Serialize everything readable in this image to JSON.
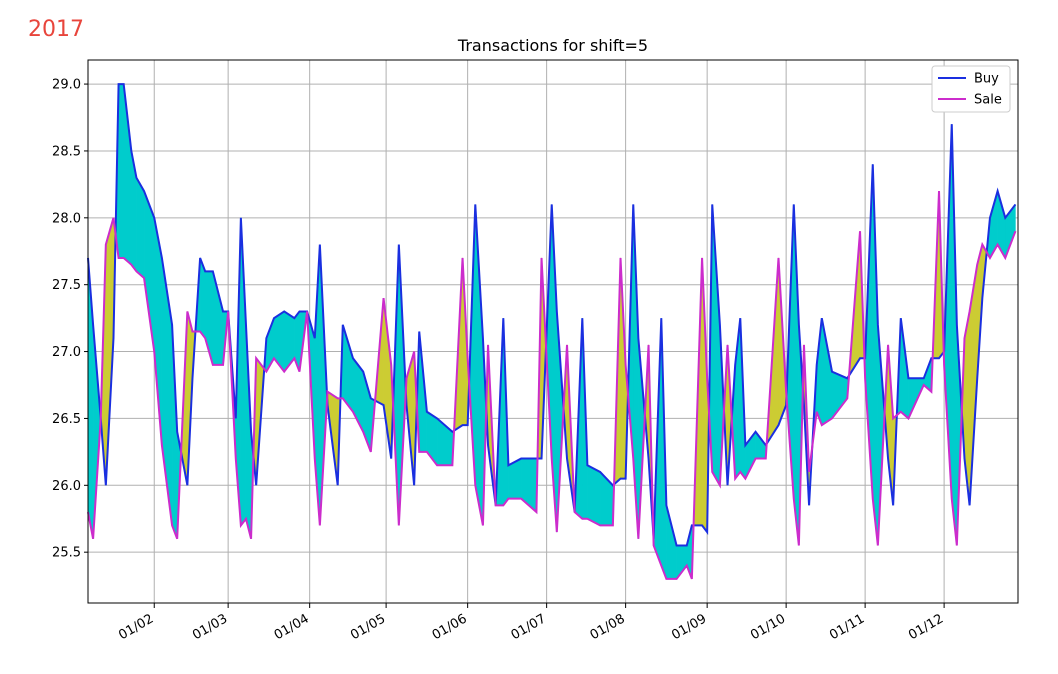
{
  "chart_data": {
    "type": "fill_between_line",
    "year_label": "2017",
    "title": "Transactions for shift=5",
    "x": [
      6,
      8,
      11,
      13,
      16,
      18,
      20,
      23,
      25,
      28,
      32,
      35,
      39,
      41,
      45,
      47,
      50,
      52,
      55,
      59,
      61,
      64,
      66,
      68,
      70,
      72,
      76,
      79,
      83,
      87,
      89,
      92,
      95,
      97,
      100,
      104,
      106,
      110,
      114,
      117,
      122,
      125,
      128,
      131,
      134,
      136,
      139,
      143,
      149,
      153,
      155,
      158,
      161,
      163,
      166,
      169,
      171,
      176,
      182,
      184,
      188,
      190,
      194,
      197,
      200,
      202,
      207,
      212,
      215,
      217,
      220,
      222,
      226,
      228,
      231,
      233,
      237,
      241,
      243,
      247,
      249,
      251,
      254,
      257,
      260,
      262,
      264,
      268,
      272,
      277,
      280,
      283,
      285,
      287,
      289,
      292,
      294,
      298,
      304,
      309,
      311,
      314,
      316,
      320,
      322,
      325,
      328,
      334,
      337,
      340,
      342,
      345,
      347,
      350,
      352,
      355,
      357,
      360,
      363,
      366,
      370
    ],
    "series": [
      {
        "name": "Buy",
        "color": "#1a2fe0",
        "values": [
          27.7,
          27.2,
          26.5,
          26.0,
          27.1,
          29.0,
          29.0,
          28.5,
          28.3,
          28.2,
          28.0,
          27.7,
          27.2,
          26.4,
          26.0,
          26.8,
          27.7,
          27.6,
          27.6,
          27.3,
          27.3,
          26.5,
          28.0,
          27.2,
          26.4,
          26.0,
          27.1,
          27.25,
          27.3,
          27.25,
          27.3,
          27.3,
          27.1,
          27.8,
          26.6,
          26.0,
          27.2,
          26.95,
          26.85,
          26.65,
          26.6,
          26.2,
          27.8,
          26.6,
          26.0,
          27.15,
          26.55,
          26.5,
          26.4,
          26.45,
          26.45,
          28.1,
          27.1,
          26.3,
          25.85,
          27.25,
          26.15,
          26.2,
          26.2,
          26.2,
          28.1,
          27.3,
          26.2,
          25.8,
          27.25,
          26.15,
          26.1,
          26.0,
          26.05,
          26.05,
          28.1,
          27.1,
          26.2,
          25.6,
          27.25,
          25.85,
          25.55,
          25.55,
          25.7,
          25.7,
          25.65,
          28.1,
          27.2,
          26.0,
          26.9,
          27.25,
          26.3,
          26.4,
          26.3,
          26.45,
          26.6,
          28.1,
          27.2,
          26.6,
          25.85,
          26.9,
          27.25,
          26.85,
          26.8,
          26.95,
          26.95,
          28.4,
          27.2,
          26.2,
          25.85,
          27.25,
          26.8,
          26.8,
          26.95,
          26.95,
          27.0,
          28.7,
          27.2,
          26.2,
          25.85,
          26.8,
          27.4,
          28.0,
          28.2,
          28.0,
          28.1
        ]
      },
      {
        "name": "Sale",
        "color": "#cc2ccc",
        "values": [
          25.8,
          25.6,
          26.5,
          27.8,
          28.0,
          27.7,
          27.7,
          27.65,
          27.6,
          27.55,
          27.0,
          26.3,
          25.7,
          25.6,
          27.3,
          27.15,
          27.15,
          27.1,
          26.9,
          26.9,
          27.3,
          26.2,
          25.7,
          25.75,
          25.6,
          26.95,
          26.85,
          26.95,
          26.85,
          26.95,
          26.85,
          27.3,
          26.2,
          25.7,
          26.7,
          26.65,
          26.65,
          26.55,
          26.4,
          26.25,
          27.4,
          26.9,
          25.7,
          26.8,
          27.0,
          26.25,
          26.25,
          26.15,
          26.15,
          27.7,
          26.95,
          26.0,
          25.7,
          27.05,
          25.85,
          25.85,
          25.9,
          25.9,
          25.8,
          27.7,
          26.2,
          25.65,
          27.05,
          25.8,
          25.75,
          25.75,
          25.7,
          25.7,
          27.7,
          26.9,
          26.2,
          25.6,
          27.05,
          25.55,
          25.4,
          25.3,
          25.3,
          25.4,
          25.3,
          27.7,
          26.8,
          26.1,
          26.0,
          27.05,
          26.05,
          26.1,
          26.05,
          26.2,
          26.2,
          27.7,
          26.7,
          25.9,
          25.55,
          27.05,
          26.1,
          26.55,
          26.45,
          26.5,
          26.65,
          27.9,
          26.8,
          25.9,
          25.55,
          27.05,
          26.5,
          26.55,
          26.5,
          26.75,
          26.7,
          28.2,
          26.9,
          25.9,
          25.55,
          27.1,
          27.3,
          27.65,
          27.8,
          27.7,
          27.8,
          27.7,
          27.9
        ]
      }
    ],
    "fill_colors": {
      "above": "#00cccc",
      "below": "#cccc33"
    },
    "xlim": [
      6,
      371
    ],
    "xticks": [
      {
        "value": 32,
        "label": "01/02"
      },
      {
        "value": 61,
        "label": "01/03"
      },
      {
        "value": 93,
        "label": "01/04"
      },
      {
        "value": 123,
        "label": "01/05"
      },
      {
        "value": 155,
        "label": "01/06"
      },
      {
        "value": 186,
        "label": "01/07"
      },
      {
        "value": 217,
        "label": "01/08"
      },
      {
        "value": 249,
        "label": "01/09"
      },
      {
        "value": 280,
        "label": "01/10"
      },
      {
        "value": 311,
        "label": "01/11"
      },
      {
        "value": 342,
        "label": "01/12"
      }
    ],
    "ylim": [
      25.12,
      29.18
    ],
    "yticks": [
      25.5,
      {
        "value": 26,
        "label": "26.0"
      },
      26.5,
      {
        "value": 27,
        "label": "27.0"
      },
      27.5,
      {
        "value": 28,
        "label": "28.0"
      },
      28.5,
      {
        "value": 29,
        "label": "29.0"
      }
    ],
    "grid": true,
    "legend": "upper right"
  }
}
